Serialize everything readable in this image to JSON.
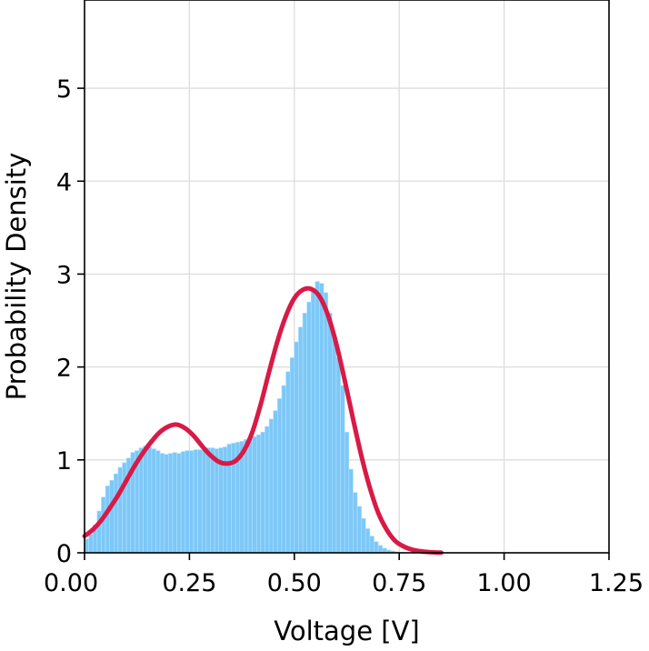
{
  "chart_data": {
    "type": "bar",
    "subtype": "histogram-with-density-curve",
    "xlabel": "Voltage [V]",
    "ylabel": "Probability Density",
    "xlim": [
      0.0,
      1.25
    ],
    "ylim": [
      0,
      5.95
    ],
    "xticks": [
      0.0,
      0.25,
      0.5,
      0.75,
      1.0,
      1.25
    ],
    "xtick_labels": [
      "0.00",
      "0.25",
      "0.50",
      "0.75",
      "1.00",
      "1.25"
    ],
    "yticks": [
      0,
      1,
      2,
      3,
      4,
      5
    ],
    "ytick_labels": [
      "0",
      "1",
      "2",
      "3",
      "4",
      "5"
    ],
    "grid": true,
    "histogram": {
      "color": "#7cc8f8",
      "bin_width": 0.01,
      "bin_start": 0.0,
      "values": [
        0.15,
        0.2,
        0.3,
        0.45,
        0.6,
        0.72,
        0.78,
        0.85,
        0.92,
        0.97,
        1.02,
        1.08,
        1.1,
        1.13,
        1.15,
        1.14,
        1.12,
        1.1,
        1.07,
        1.06,
        1.07,
        1.08,
        1.07,
        1.09,
        1.1,
        1.1,
        1.11,
        1.11,
        1.12,
        1.13,
        1.13,
        1.12,
        1.13,
        1.14,
        1.17,
        1.18,
        1.19,
        1.2,
        1.22,
        1.23,
        1.25,
        1.27,
        1.3,
        1.36,
        1.44,
        1.53,
        1.66,
        1.8,
        1.95,
        2.1,
        2.27,
        2.43,
        2.58,
        2.7,
        2.82,
        2.92,
        2.9,
        2.8,
        2.58,
        2.35,
        2.1,
        1.8,
        1.3,
        0.9,
        0.65,
        0.5,
        0.37,
        0.26,
        0.18,
        0.12,
        0.08,
        0.05,
        0.03,
        0.02,
        0.01,
        0.005,
        0.002,
        0.001,
        0.0,
        0.0,
        0.0,
        0.0,
        0.0,
        0.0,
        0.0
      ]
    },
    "series": [
      {
        "type": "line",
        "color": "#d81a46",
        "x": [
          0.0,
          0.02,
          0.04,
          0.06,
          0.08,
          0.1,
          0.12,
          0.14,
          0.16,
          0.18,
          0.2,
          0.22,
          0.24,
          0.26,
          0.28,
          0.3,
          0.32,
          0.34,
          0.36,
          0.38,
          0.4,
          0.42,
          0.44,
          0.46,
          0.48,
          0.5,
          0.52,
          0.54,
          0.56,
          0.58,
          0.6,
          0.62,
          0.64,
          0.66,
          0.68,
          0.7,
          0.72,
          0.74,
          0.76,
          0.78,
          0.8,
          0.82,
          0.84,
          0.85
        ],
        "y": [
          0.18,
          0.25,
          0.35,
          0.48,
          0.62,
          0.78,
          0.94,
          1.08,
          1.2,
          1.3,
          1.36,
          1.38,
          1.34,
          1.26,
          1.15,
          1.05,
          0.98,
          0.96,
          0.99,
          1.1,
          1.3,
          1.6,
          1.95,
          2.28,
          2.55,
          2.74,
          2.83,
          2.84,
          2.76,
          2.56,
          2.25,
          1.86,
          1.44,
          1.04,
          0.7,
          0.43,
          0.25,
          0.13,
          0.07,
          0.035,
          0.017,
          0.008,
          0.003,
          0.002
        ]
      }
    ]
  }
}
